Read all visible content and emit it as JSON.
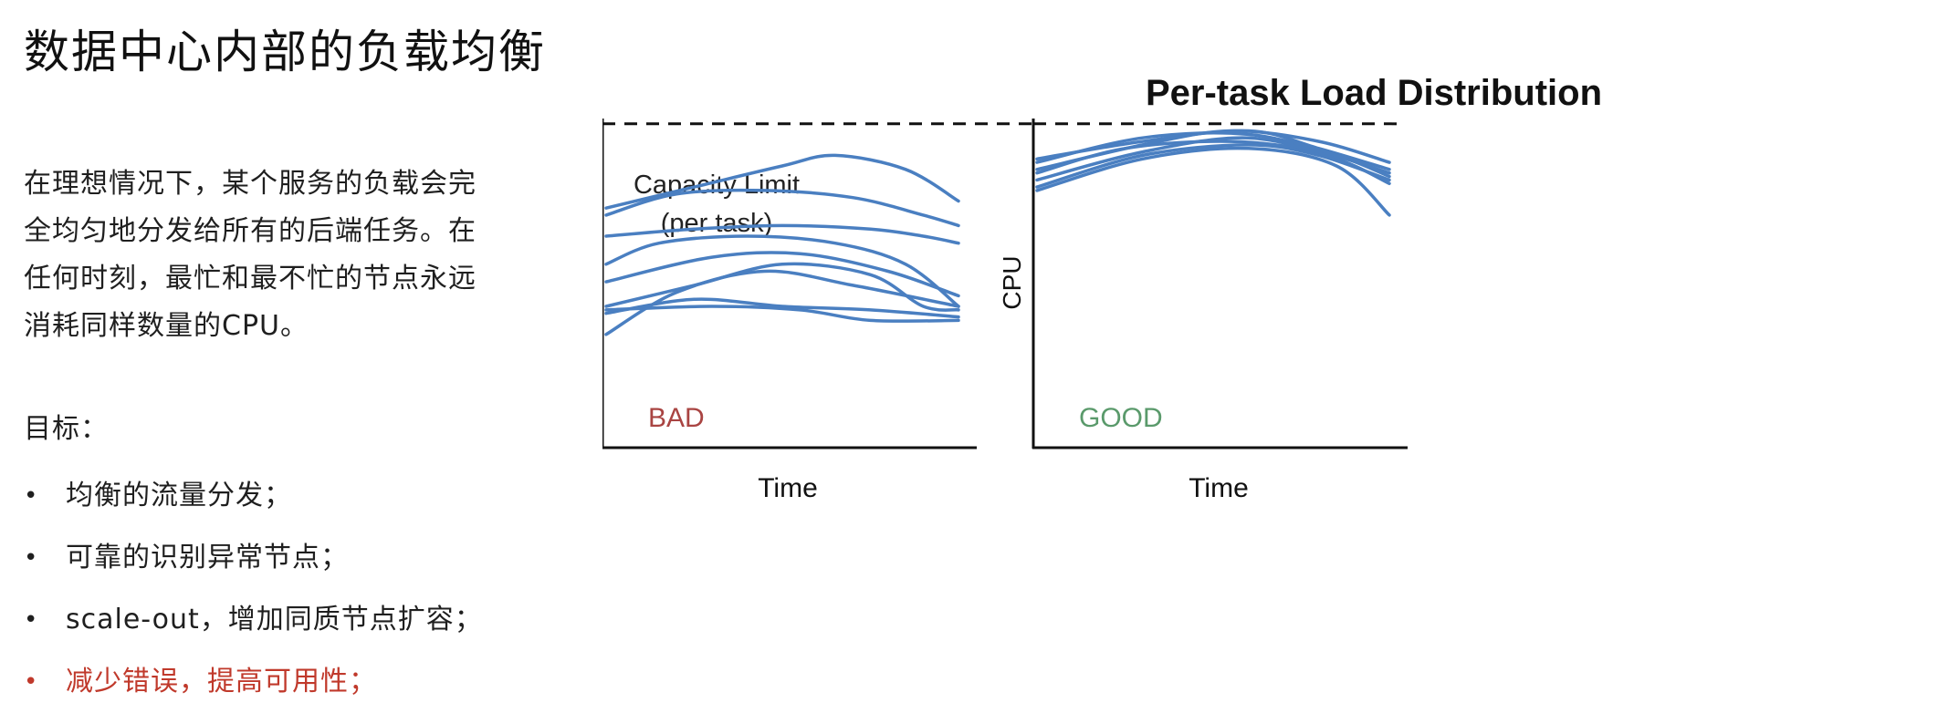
{
  "slide": {
    "title": "数据中心内部的负载均衡",
    "paragraph_lines": [
      "在理想情况下，某个服务的负载会完",
      "全均匀地分发给所有的后端任务。在",
      "任何时刻，最忙和最不忙的节点永远",
      "消耗同样数量的CPU。"
    ],
    "goal_label": "目标：",
    "bullet_marker": "•",
    "bullets": [
      {
        "text": "均衡的流量分发；",
        "highlight": false
      },
      {
        "text": "可靠的识别异常节点；",
        "highlight": false
      },
      {
        "text": "scale-out，增加同质节点扩容；",
        "highlight": false
      },
      {
        "text": "减少错误，提高可用性；",
        "highlight": true
      }
    ],
    "highlight_color": "#c0392b"
  },
  "chart_data": {
    "type": "line",
    "title": "Per-task Load Distribution",
    "capacity_label_lines": [
      "Capacity Limit",
      "(per task)"
    ],
    "capacity_limit": 0.92,
    "line_color": "#4a7fc1",
    "panels": [
      {
        "label": "BAD",
        "label_color": "#a94442",
        "xlabel": "Time",
        "ylabel": "CPU",
        "xlim": [
          0,
          1
        ],
        "ylim": [
          0,
          1
        ],
        "series": [
          {
            "x": [
              0,
              0.25,
              0.5,
              0.65,
              0.85,
              1.0
            ],
            "y": [
              0.68,
              0.74,
              0.8,
              0.83,
              0.79,
              0.7
            ]
          },
          {
            "x": [
              0,
              0.2,
              0.45,
              0.7,
              0.9,
              1.0
            ],
            "y": [
              0.66,
              0.72,
              0.73,
              0.71,
              0.66,
              0.63
            ]
          },
          {
            "x": [
              0,
              0.25,
              0.5,
              0.75,
              0.9,
              1.0
            ],
            "y": [
              0.6,
              0.62,
              0.63,
              0.62,
              0.6,
              0.58
            ]
          },
          {
            "x": [
              0,
              0.15,
              0.4,
              0.65,
              0.85,
              1.0
            ],
            "y": [
              0.52,
              0.58,
              0.6,
              0.58,
              0.52,
              0.4
            ]
          },
          {
            "x": [
              0,
              0.3,
              0.55,
              0.8,
              1.0
            ],
            "y": [
              0.47,
              0.54,
              0.55,
              0.5,
              0.43
            ]
          },
          {
            "x": [
              0,
              0.25,
              0.5,
              0.75,
              0.9,
              1.0
            ],
            "y": [
              0.4,
              0.46,
              0.52,
              0.49,
              0.4,
              0.39
            ]
          },
          {
            "x": [
              0,
              0.25,
              0.5,
              0.75,
              1.0
            ],
            "y": [
              0.38,
              0.42,
              0.4,
              0.39,
              0.37
            ]
          },
          {
            "x": [
              0,
              0.3,
              0.55,
              0.75,
              1.0
            ],
            "y": [
              0.39,
              0.4,
              0.39,
              0.36,
              0.36
            ]
          },
          {
            "x": [
              0,
              0.2,
              0.45,
              0.7,
              1.0
            ],
            "y": [
              0.32,
              0.44,
              0.5,
              0.46,
              0.4
            ]
          }
        ]
      },
      {
        "label": "GOOD",
        "label_color": "#5a9a6b",
        "xlabel": "Time",
        "ylabel": "CPU",
        "xlim": [
          0,
          1
        ],
        "ylim": [
          0,
          1
        ],
        "series": [
          {
            "x": [
              0,
              0.3,
              0.6,
              0.8,
              1.0
            ],
            "y": [
              0.82,
              0.87,
              0.9,
              0.85,
              0.79
            ]
          },
          {
            "x": [
              0,
              0.3,
              0.6,
              0.85,
              1.0
            ],
            "y": [
              0.81,
              0.88,
              0.89,
              0.83,
              0.77
            ]
          },
          {
            "x": [
              0,
              0.3,
              0.55,
              0.8,
              1.0
            ],
            "y": [
              0.79,
              0.86,
              0.9,
              0.87,
              0.81
            ]
          },
          {
            "x": [
              0,
              0.25,
              0.55,
              0.8,
              1.0
            ],
            "y": [
              0.78,
              0.85,
              0.87,
              0.84,
              0.78
            ]
          },
          {
            "x": [
              0,
              0.3,
              0.6,
              0.85,
              1.0
            ],
            "y": [
              0.76,
              0.84,
              0.88,
              0.82,
              0.75
            ]
          },
          {
            "x": [
              0,
              0.3,
              0.6,
              0.8,
              1.0
            ],
            "y": [
              0.74,
              0.83,
              0.86,
              0.83,
              0.76
            ]
          },
          {
            "x": [
              0,
              0.3,
              0.6,
              0.85,
              1.0
            ],
            "y": [
              0.73,
              0.82,
              0.85,
              0.8,
              0.66
            ]
          }
        ]
      }
    ]
  }
}
